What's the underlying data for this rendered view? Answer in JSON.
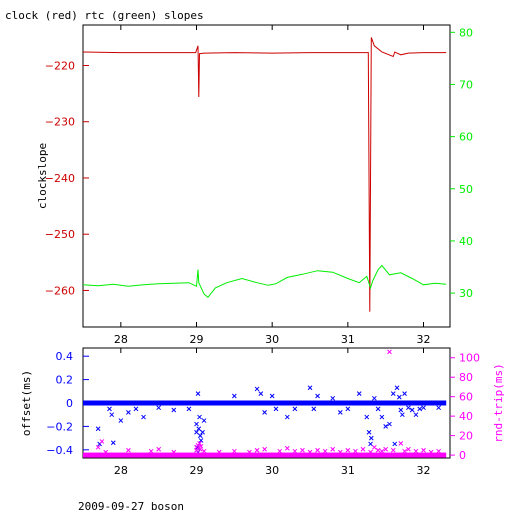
{
  "title": "clock (red) rtc (green) slopes",
  "footer": "2009-09-27 boson",
  "colors": {
    "clock": "#cc0000",
    "rtc": "#00ee00",
    "offset": "#0000ff",
    "rtt": "#ff00ff",
    "frame": "#000000"
  },
  "chart_data": [
    {
      "type": "line",
      "title": "clock (red) rtc (green) slopes",
      "xlim": [
        27.5,
        32.35
      ],
      "x_ticks": [
        28,
        29,
        30,
        31,
        32
      ],
      "ylabel": "clockslope",
      "ylim": [
        -266.5,
        -212.8
      ],
      "y_ticks": [
        -220,
        -230,
        -240,
        -250,
        -260
      ],
      "y2lim": [
        23.5,
        81.4
      ],
      "y2_ticks": [
        30,
        40,
        50,
        60,
        70,
        80
      ],
      "series": [
        {
          "name": "clock",
          "axis": "left",
          "color": "#cc0000",
          "points": [
            [
              27.5,
              -217.6
            ],
            [
              28.0,
              -217.7
            ],
            [
              28.5,
              -217.7
            ],
            [
              28.99,
              -217.7
            ],
            [
              29.02,
              -216.5
            ],
            [
              29.03,
              -225.6
            ],
            [
              29.04,
              -217.9
            ],
            [
              29.1,
              -217.8
            ],
            [
              29.5,
              -217.7
            ],
            [
              30.0,
              -217.8
            ],
            [
              30.5,
              -217.7
            ],
            [
              31.0,
              -217.7
            ],
            [
              31.27,
              -217.7
            ],
            [
              31.29,
              -263.8
            ],
            [
              31.31,
              -215.0
            ],
            [
              31.35,
              -216.5
            ],
            [
              31.45,
              -217.6
            ],
            [
              31.6,
              -218.4
            ],
            [
              31.62,
              -217.6
            ],
            [
              31.7,
              -218.1
            ],
            [
              31.8,
              -217.8
            ],
            [
              32.0,
              -217.7
            ],
            [
              32.3,
              -217.7
            ]
          ]
        },
        {
          "name": "rtc",
          "axis": "right",
          "color": "#00ee00",
          "points": [
            [
              27.5,
              31.6
            ],
            [
              27.7,
              31.4
            ],
            [
              27.9,
              31.7
            ],
            [
              28.1,
              31.3
            ],
            [
              28.3,
              31.6
            ],
            [
              28.5,
              31.8
            ],
            [
              28.7,
              31.9
            ],
            [
              28.9,
              32.0
            ],
            [
              29.0,
              31.3
            ],
            [
              29.02,
              34.5
            ],
            [
              29.03,
              32.0
            ],
            [
              29.1,
              29.8
            ],
            [
              29.15,
              29.2
            ],
            [
              29.25,
              31.0
            ],
            [
              29.4,
              32.0
            ],
            [
              29.6,
              32.8
            ],
            [
              29.8,
              32.0
            ],
            [
              29.95,
              31.5
            ],
            [
              30.05,
              31.8
            ],
            [
              30.2,
              33.0
            ],
            [
              30.4,
              33.6
            ],
            [
              30.6,
              34.3
            ],
            [
              30.8,
              34.0
            ],
            [
              31.0,
              32.8
            ],
            [
              31.15,
              32.0
            ],
            [
              31.25,
              33.2
            ],
            [
              31.3,
              31.0
            ],
            [
              31.33,
              32.4
            ],
            [
              31.4,
              34.5
            ],
            [
              31.45,
              35.3
            ],
            [
              31.55,
              33.5
            ],
            [
              31.7,
              33.9
            ],
            [
              31.85,
              32.8
            ],
            [
              32.0,
              31.6
            ],
            [
              32.15,
              31.9
            ],
            [
              32.3,
              31.7
            ]
          ]
        }
      ]
    },
    {
      "type": "scatter",
      "xlim": [
        27.5,
        32.35
      ],
      "x_ticks": [
        28,
        29,
        30,
        31,
        32
      ],
      "ylabel": "offset(ms)",
      "ylim": [
        -0.47,
        0.47
      ],
      "y_ticks": [
        0.4,
        0.2,
        0,
        -0.2,
        -0.4
      ],
      "y2label": "rnd-trip(ms)",
      "y2lim": [
        -3,
        110
      ],
      "y2_ticks": [
        0,
        20,
        40,
        60,
        80,
        100
      ],
      "series": [
        {
          "name": "offset",
          "axis": "left",
          "color": "#0000ff",
          "band": {
            "y": 0.0,
            "x_from": 27.5,
            "x_to": 32.3
          },
          "points": [
            [
              27.7,
              -0.22
            ],
            [
              27.72,
              -0.35
            ],
            [
              27.85,
              -0.05
            ],
            [
              27.88,
              -0.1
            ],
            [
              27.9,
              -0.34
            ],
            [
              28.0,
              -0.15
            ],
            [
              28.1,
              -0.08
            ],
            [
              28.2,
              -0.05
            ],
            [
              28.3,
              -0.12
            ],
            [
              28.5,
              -0.04
            ],
            [
              28.7,
              -0.06
            ],
            [
              28.9,
              -0.05
            ],
            [
              29.0,
              -0.18
            ],
            [
              29.0,
              -0.25
            ],
            [
              29.01,
              -0.38
            ],
            [
              29.02,
              0.08
            ],
            [
              29.02,
              -0.42
            ],
            [
              29.03,
              -0.22
            ],
            [
              29.04,
              -0.12
            ],
            [
              29.05,
              -0.28
            ],
            [
              29.06,
              -0.32
            ],
            [
              29.08,
              -0.25
            ],
            [
              29.1,
              -0.15
            ],
            [
              29.5,
              0.06
            ],
            [
              29.8,
              0.12
            ],
            [
              29.85,
              0.08
            ],
            [
              29.9,
              -0.08
            ],
            [
              30.0,
              0.06
            ],
            [
              30.05,
              -0.05
            ],
            [
              30.2,
              -0.12
            ],
            [
              30.3,
              -0.05
            ],
            [
              30.5,
              0.13
            ],
            [
              30.55,
              -0.05
            ],
            [
              30.6,
              0.06
            ],
            [
              30.8,
              0.04
            ],
            [
              30.9,
              -0.08
            ],
            [
              31.0,
              -0.05
            ],
            [
              31.15,
              0.08
            ],
            [
              31.25,
              -0.12
            ],
            [
              31.28,
              -0.25
            ],
            [
              31.3,
              -0.35
            ],
            [
              31.31,
              -0.3
            ],
            [
              31.35,
              0.04
            ],
            [
              31.4,
              -0.05
            ],
            [
              31.45,
              -0.12
            ],
            [
              31.5,
              -0.2
            ],
            [
              31.55,
              -0.18
            ],
            [
              31.6,
              0.08
            ],
            [
              31.62,
              -0.35
            ],
            [
              31.65,
              0.13
            ],
            [
              31.68,
              0.05
            ],
            [
              31.7,
              -0.06
            ],
            [
              31.72,
              -0.1
            ],
            [
              31.75,
              0.08
            ],
            [
              31.8,
              -0.04
            ],
            [
              31.85,
              -0.06
            ],
            [
              31.9,
              -0.1
            ],
            [
              31.95,
              -0.05
            ],
            [
              32.0,
              -0.04
            ],
            [
              32.2,
              -0.04
            ]
          ]
        },
        {
          "name": "rnd-trip",
          "axis": "right",
          "color": "#ff00ff",
          "band": {
            "y": 0.0,
            "x_from": 27.5,
            "x_to": 32.3
          },
          "points": [
            [
              27.7,
              8
            ],
            [
              27.75,
              14
            ],
            [
              27.8,
              3
            ],
            [
              28.1,
              5
            ],
            [
              28.4,
              4
            ],
            [
              28.5,
              6
            ],
            [
              28.7,
              3
            ],
            [
              29.0,
              5
            ],
            [
              29.0,
              8
            ],
            [
              29.02,
              10
            ],
            [
              29.04,
              12
            ],
            [
              29.05,
              6
            ],
            [
              29.06,
              9
            ],
            [
              29.1,
              4
            ],
            [
              29.3,
              3
            ],
            [
              29.5,
              4
            ],
            [
              29.7,
              3
            ],
            [
              29.8,
              5
            ],
            [
              29.9,
              6
            ],
            [
              30.1,
              4
            ],
            [
              30.2,
              7
            ],
            [
              30.3,
              4
            ],
            [
              30.4,
              5
            ],
            [
              30.5,
              3
            ],
            [
              30.6,
              5
            ],
            [
              30.7,
              4
            ],
            [
              30.8,
              6
            ],
            [
              30.9,
              3
            ],
            [
              31.0,
              5
            ],
            [
              31.1,
              4
            ],
            [
              31.2,
              6
            ],
            [
              31.3,
              3
            ],
            [
              31.35,
              8
            ],
            [
              31.4,
              5
            ],
            [
              31.45,
              4
            ],
            [
              31.5,
              6
            ],
            [
              31.55,
              106
            ],
            [
              31.6,
              5
            ],
            [
              31.7,
              12
            ],
            [
              31.75,
              4
            ],
            [
              31.8,
              6
            ],
            [
              31.9,
              4
            ],
            [
              32.0,
              5
            ],
            [
              32.1,
              3
            ],
            [
              32.2,
              4
            ]
          ]
        }
      ]
    }
  ]
}
